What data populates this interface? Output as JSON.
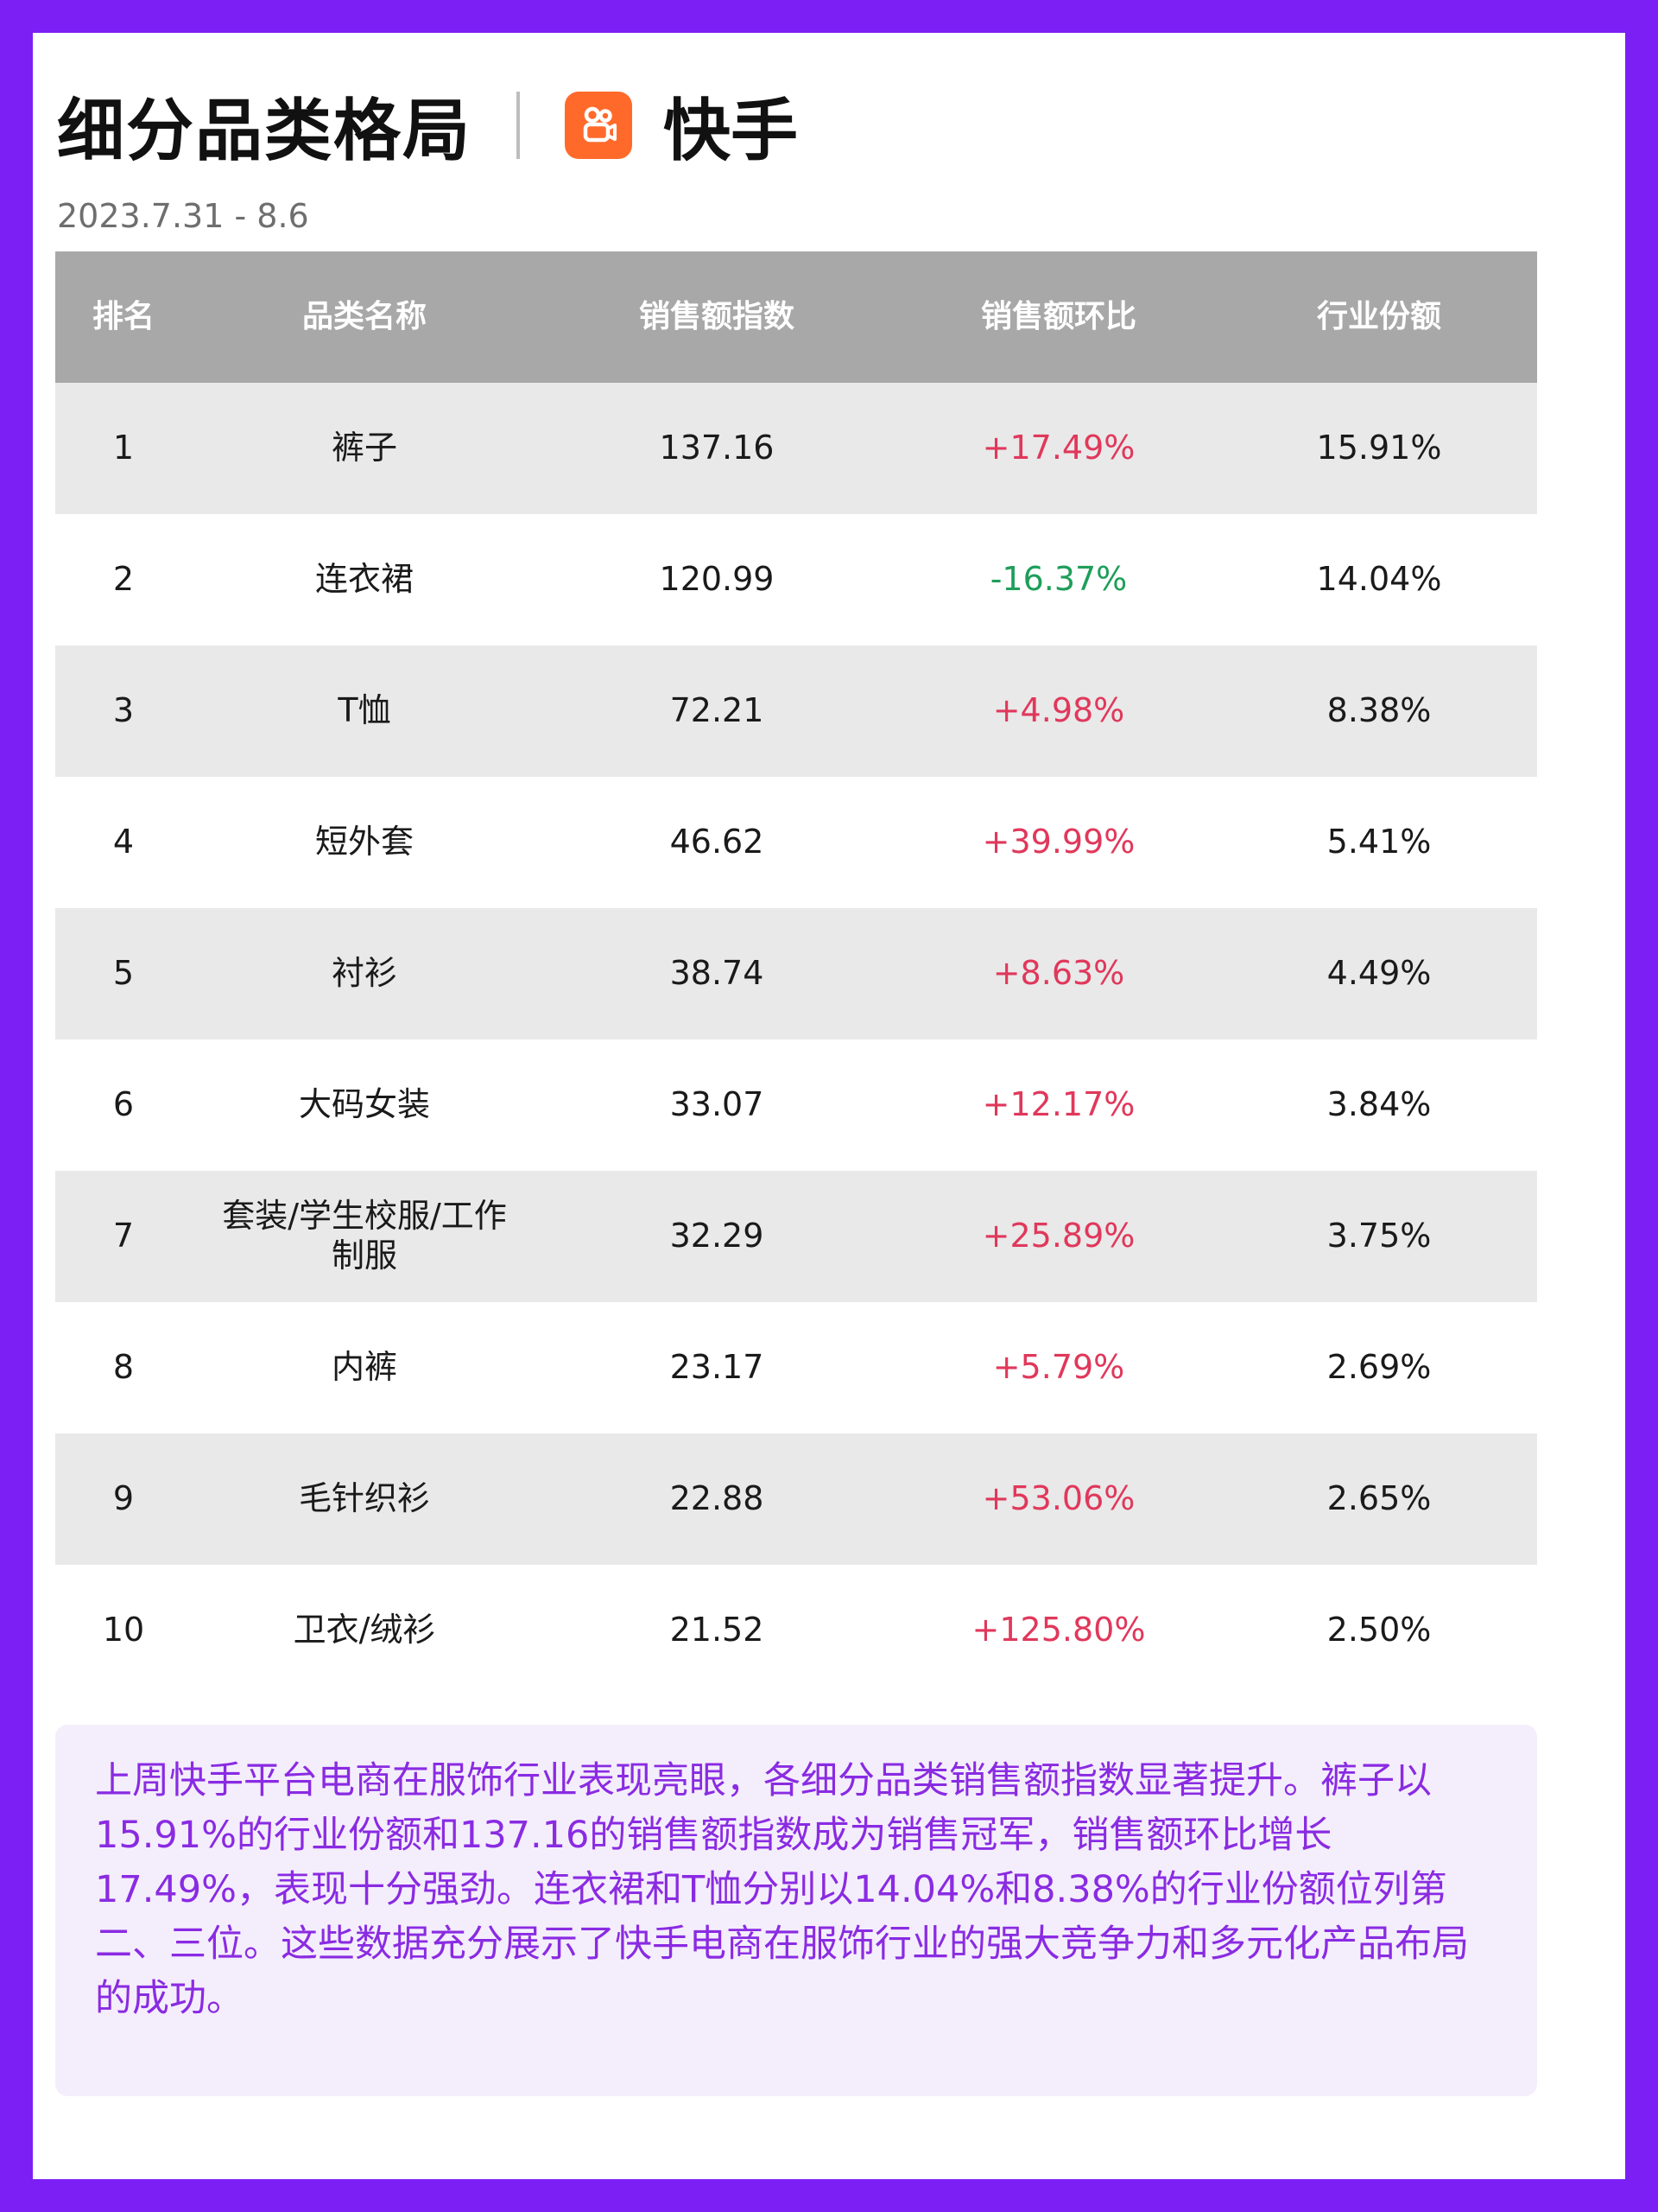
{
  "header": {
    "title": "细分品类格局",
    "brand": "快手",
    "date": "2023.7.31 - 8.6",
    "logo_color": "#FF6A2B"
  },
  "table": {
    "columns": [
      "排名",
      "品类名称",
      "销售额指数",
      "销售额环比",
      "行业份额"
    ],
    "rows": [
      {
        "rank": "1",
        "name": "裤子",
        "index": "137.16",
        "change": "+17.49%",
        "share": "15.91%"
      },
      {
        "rank": "2",
        "name": "连衣裙",
        "index": "120.99",
        "change": "-16.37%",
        "share": "14.04%"
      },
      {
        "rank": "3",
        "name": "T恤",
        "index": "72.21",
        "change": "+4.98%",
        "share": "8.38%"
      },
      {
        "rank": "4",
        "name": "短外套",
        "index": "46.62",
        "change": "+39.99%",
        "share": "5.41%"
      },
      {
        "rank": "5",
        "name": "衬衫",
        "index": "38.74",
        "change": "+8.63%",
        "share": "4.49%"
      },
      {
        "rank": "6",
        "name": "大码女装",
        "index": "33.07",
        "change": "+12.17%",
        "share": "3.84%"
      },
      {
        "rank": "7",
        "name": "套装/学生校服/工作制服",
        "index": "32.29",
        "change": "+25.89%",
        "share": "3.75%"
      },
      {
        "rank": "8",
        "name": "内裤",
        "index": "23.17",
        "change": "+5.79%",
        "share": "2.69%"
      },
      {
        "rank": "9",
        "name": "毛针织衫",
        "index": "22.88",
        "change": "+53.06%",
        "share": "2.65%"
      },
      {
        "rank": "10",
        "name": "卫衣/绒衫",
        "index": "21.52",
        "change": "+125.80%",
        "share": "2.50%"
      }
    ]
  },
  "summary": "上周快手平台电商在服饰行业表现亮眼，各细分品类销售额指数显著提升。裤子以15.91%的行业份额和137.16的销售额指数成为销售冠军，销售额环比增长17.49%，表现十分强劲。连衣裙和T恤分别以14.04%和8.38%的行业份额位列第二、三位。这些数据充分展示了快手电商在服饰行业的强大竞争力和多元化产品布局的成功。",
  "colors": {
    "background": "#7B1FF5",
    "positive": "#E0385B",
    "negative": "#1E9E5A",
    "summary_text": "#8A2BE2"
  }
}
